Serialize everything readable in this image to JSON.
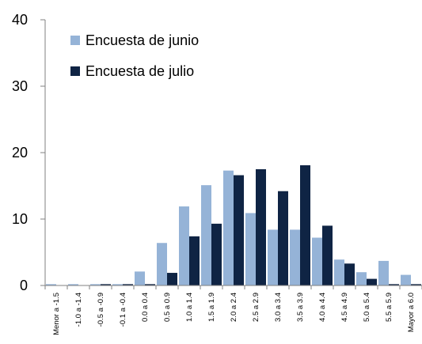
{
  "chart_data": {
    "type": "bar",
    "title": "",
    "xlabel": "",
    "ylabel": "",
    "ylim": [
      0,
      40
    ],
    "yticks": [
      0,
      10,
      20,
      30,
      40
    ],
    "grid": false,
    "legend_position": "top-left",
    "categories": [
      "Menor a -1.5",
      "-1.0 a -1.4",
      "-0.5 a -0.9",
      "-0.1 a -0.4",
      "0.0 a 0.4",
      "0.5 a 0.9",
      "1.0 a 1.4",
      "1.5 a 1.9",
      "2.0 a 2.4",
      "2.5 a 2.9",
      "3.0 a 3.4",
      "3.5 a 3.9",
      "4.0 a 4.4",
      "4.5 a 4.9",
      "5.0 a 5.4",
      "5.5 a 5.9",
      "Mayor a 6.0"
    ],
    "series": [
      {
        "name": "Encuesta de junio",
        "color": "#95B3D7",
        "values": [
          0.2,
          0.2,
          0.2,
          0.2,
          2.1,
          6.4,
          11.9,
          15.1,
          17.3,
          10.9,
          8.4,
          8.4,
          7.2,
          3.9,
          2.0,
          3.7,
          1.6
        ]
      },
      {
        "name": "Encuesta de julio",
        "color": "#0F2444",
        "values": [
          0.0,
          0.0,
          0.2,
          0.2,
          0.2,
          1.9,
          7.4,
          9.3,
          16.6,
          17.5,
          14.2,
          18.1,
          9.0,
          3.3,
          1.0,
          0.2,
          0.2
        ]
      }
    ]
  }
}
